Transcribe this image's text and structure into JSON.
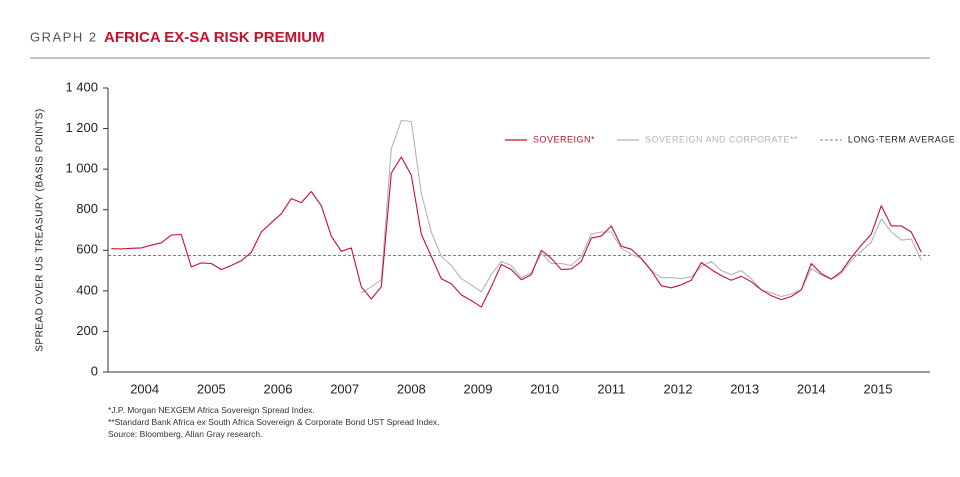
{
  "chart_data": {
    "type": "line",
    "graph_label": "GRAPH 2",
    "title": "AFRICA EX-SA RISK PREMIUM",
    "ylabel": "SPREAD OVER US TREASURY (BASIS POINTS)",
    "footnotes": [
      "*J.P. Morgan NEXGEM Africa Sovereign Spread Index.",
      "**Standard Bank Africa ex South Africa Sovereign & Corporate Bond UST Spread Index.",
      "Source: Bloomberg, Allan Gray research."
    ],
    "x": [
      2004,
      2004.15,
      2004.3,
      2004.45,
      2004.6,
      2004.75,
      2004.9,
      2005.05,
      2005.2,
      2005.35,
      2005.5,
      2005.65,
      2005.8,
      2005.95,
      2006.1,
      2006.25,
      2006.4,
      2006.55,
      2006.7,
      2006.85,
      2007,
      2007.15,
      2007.3,
      2007.45,
      2007.6,
      2007.75,
      2007.9,
      2008.05,
      2008.2,
      2008.35,
      2008.5,
      2008.65,
      2008.8,
      2008.95,
      2009.1,
      2009.25,
      2009.4,
      2009.55,
      2009.7,
      2009.85,
      2010,
      2010.15,
      2010.3,
      2010.45,
      2010.6,
      2010.75,
      2010.9,
      2011.05,
      2011.2,
      2011.35,
      2011.5,
      2011.65,
      2011.8,
      2011.95,
      2012.1,
      2012.25,
      2012.4,
      2012.55,
      2012.7,
      2012.85,
      2013,
      2013.15,
      2013.3,
      2013.45,
      2013.6,
      2013.75,
      2013.9,
      2014.05,
      2014.2,
      2014.35,
      2014.5,
      2014.65,
      2014.8,
      2014.95,
      2015.1,
      2015.25,
      2015.4,
      2015.55,
      2015.7,
      2015.85,
      2016,
      2016.15
    ],
    "series": [
      {
        "name": "SOVEREIGN*",
        "color": "#c8102e",
        "values": [
          608,
          607,
          610,
          612,
          625,
          637,
          675,
          678,
          518,
          538,
          535,
          505,
          525,
          548,
          590,
          690,
          736,
          780,
          855,
          835,
          890,
          820,
          670,
          595,
          612,
          420,
          360,
          420,
          980,
          1060,
          970,
          680,
          570,
          460,
          435,
          380,
          352,
          320,
          420,
          530,
          505,
          455,
          480,
          600,
          560,
          505,
          508,
          545,
          660,
          670,
          720,
          620,
          605,
          560,
          500,
          425,
          415,
          430,
          452,
          540,
          505,
          475,
          452,
          472,
          445,
          405,
          376,
          357,
          372,
          405,
          535,
          485,
          458,
          495,
          565,
          625,
          680,
          820,
          720,
          720,
          690,
          590
        ]
      },
      {
        "name": "SOVEREIGN AND CORPORATE**",
        "color": "#b4b4b4",
        "values": [
          null,
          null,
          null,
          null,
          null,
          null,
          null,
          null,
          null,
          null,
          null,
          null,
          null,
          null,
          null,
          null,
          null,
          null,
          null,
          null,
          null,
          null,
          null,
          null,
          null,
          390,
          420,
          455,
          1100,
          1240,
          1235,
          880,
          690,
          570,
          525,
          460,
          430,
          395,
          480,
          545,
          525,
          465,
          490,
          585,
          535,
          535,
          525,
          570,
          680,
          690,
          690,
          610,
          580,
          560,
          500,
          465,
          465,
          460,
          470,
          520,
          545,
          500,
          480,
          500,
          460,
          405,
          390,
          372,
          385,
          405,
          510,
          478,
          458,
          485,
          550,
          595,
          640,
          755,
          690,
          650,
          655,
          550
        ]
      }
    ],
    "average": {
      "name": "LONG-TERM AVERAGE",
      "value": 575,
      "color": "#555555"
    },
    "xlim": [
      2003.95,
      2016.28
    ],
    "xticks": [
      {
        "value": 2004.5,
        "label": "2004"
      },
      {
        "value": 2005.5,
        "label": "2005"
      },
      {
        "value": 2006.5,
        "label": "2006"
      },
      {
        "value": 2007.5,
        "label": "2007"
      },
      {
        "value": 2008.5,
        "label": "2008"
      },
      {
        "value": 2009.5,
        "label": "2009"
      },
      {
        "value": 2010.5,
        "label": "2010"
      },
      {
        "value": 2011.5,
        "label": "2011"
      },
      {
        "value": 2012.5,
        "label": "2012"
      },
      {
        "value": 2013.5,
        "label": "2013"
      },
      {
        "value": 2014.5,
        "label": "2014"
      },
      {
        "value": 2015.5,
        "label": "2015"
      }
    ],
    "ylim": [
      0,
      1400
    ],
    "yticks": [
      0,
      200,
      400,
      600,
      800,
      {
        "value": 1000,
        "label": "1 000"
      },
      {
        "value": 1200,
        "label": "1 200"
      },
      {
        "value": 1400,
        "label": "1 400"
      }
    ],
    "grid": false,
    "legend": "upper right"
  }
}
